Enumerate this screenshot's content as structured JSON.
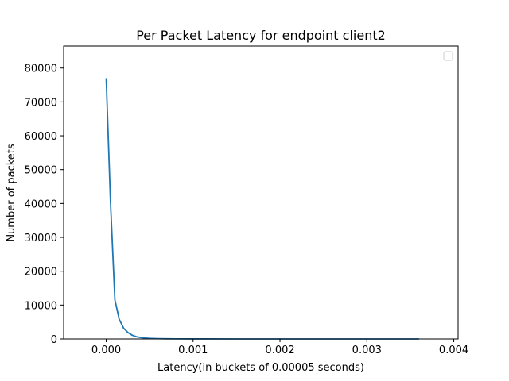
{
  "chart_data": {
    "type": "line",
    "title": "Per Packet Latency for endpoint client2",
    "xlabel": "Latency(in buckets of 0.00005 seconds)",
    "ylabel": "Number of packets",
    "xlim": [
      -0.00049,
      0.00405
    ],
    "ylim": [
      0,
      86500
    ],
    "xticks": [
      0.0,
      0.001,
      0.002,
      0.003,
      0.004
    ],
    "xtick_labels": [
      "0.000",
      "0.001",
      "0.002",
      "0.003",
      "0.004"
    ],
    "yticks": [
      0,
      10000,
      20000,
      30000,
      40000,
      50000,
      60000,
      70000,
      80000
    ],
    "ytick_labels": [
      "0",
      "10000",
      "20000",
      "30000",
      "40000",
      "50000",
      "60000",
      "70000",
      "80000"
    ],
    "grid": false,
    "legend": "top-right",
    "series": [
      {
        "color": "#1f77b4",
        "x": [
          0.0,
          5e-05,
          0.0001,
          0.00015,
          0.0002,
          0.00025,
          0.0003,
          0.00035,
          0.0004,
          0.00045,
          0.0005,
          0.0006,
          0.0007,
          0.0008,
          0.001,
          0.0015,
          0.002,
          0.0025,
          0.003,
          0.0036
        ],
        "y": [
          77000,
          40000,
          11500,
          5800,
          3200,
          1900,
          1100,
          650,
          400,
          260,
          170,
          90,
          50,
          30,
          15,
          6,
          3,
          2,
          1,
          1
        ]
      }
    ]
  }
}
